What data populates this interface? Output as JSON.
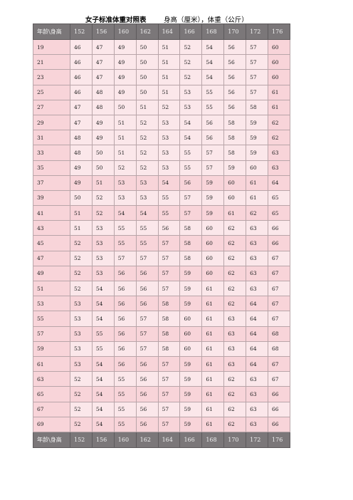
{
  "header": {
    "title": "女子标准体重对照表",
    "subtitle": "身高（厘米），体重（公斤）"
  },
  "table": {
    "corner": "年龄\\身高",
    "heights": [
      "152",
      "156",
      "160",
      "162",
      "164",
      "166",
      "168",
      "170",
      "172",
      "176"
    ],
    "rows": [
      {
        "age": "19",
        "w": [
          "46",
          "47",
          "49",
          "50",
          "51",
          "52",
          "54",
          "56",
          "57",
          "60"
        ]
      },
      {
        "age": "21",
        "w": [
          "46",
          "47",
          "49",
          "50",
          "51",
          "52",
          "54",
          "56",
          "57",
          "60"
        ]
      },
      {
        "age": "23",
        "w": [
          "46",
          "47",
          "49",
          "50",
          "51",
          "52",
          "54",
          "56",
          "57",
          "60"
        ]
      },
      {
        "age": "25",
        "w": [
          "46",
          "48",
          "49",
          "50",
          "51",
          "53",
          "55",
          "56",
          "57",
          "61"
        ]
      },
      {
        "age": "27",
        "w": [
          "47",
          "48",
          "50",
          "51",
          "52",
          "53",
          "55",
          "56",
          "58",
          "61"
        ]
      },
      {
        "age": "29",
        "w": [
          "47",
          "49",
          "51",
          "52",
          "53",
          "54",
          "56",
          "58",
          "59",
          "62"
        ]
      },
      {
        "age": "31",
        "w": [
          "48",
          "49",
          "51",
          "52",
          "53",
          "54",
          "56",
          "58",
          "59",
          "62"
        ]
      },
      {
        "age": "33",
        "w": [
          "48",
          "50",
          "51",
          "52",
          "53",
          "55",
          "57",
          "58",
          "59",
          "63"
        ]
      },
      {
        "age": "35",
        "w": [
          "49",
          "50",
          "52",
          "52",
          "53",
          "55",
          "57",
          "59",
          "60",
          "63"
        ]
      },
      {
        "age": "37",
        "w": [
          "49",
          "51",
          "53",
          "53",
          "54",
          "56",
          "59",
          "60",
          "61",
          "64"
        ]
      },
      {
        "age": "39",
        "w": [
          "50",
          "52",
          "53",
          "53",
          "55",
          "57",
          "59",
          "60",
          "61",
          "65"
        ]
      },
      {
        "age": "41",
        "w": [
          "51",
          "52",
          "54",
          "54",
          "55",
          "57",
          "59",
          "61",
          "62",
          "65"
        ]
      },
      {
        "age": "43",
        "w": [
          "51",
          "53",
          "55",
          "55",
          "56",
          "58",
          "60",
          "62",
          "63",
          "66"
        ]
      },
      {
        "age": "45",
        "w": [
          "52",
          "53",
          "55",
          "55",
          "57",
          "58",
          "60",
          "62",
          "63",
          "66"
        ]
      },
      {
        "age": "47",
        "w": [
          "52",
          "53",
          "57",
          "57",
          "57",
          "58",
          "60",
          "62",
          "63",
          "67"
        ]
      },
      {
        "age": "49",
        "w": [
          "52",
          "53",
          "56",
          "56",
          "57",
          "59",
          "60",
          "62",
          "63",
          "67"
        ]
      },
      {
        "age": "51",
        "w": [
          "52",
          "54",
          "56",
          "56",
          "57",
          "59",
          "61",
          "62",
          "63",
          "67"
        ]
      },
      {
        "age": "53",
        "w": [
          "53",
          "54",
          "56",
          "56",
          "58",
          "59",
          "61",
          "62",
          "64",
          "67"
        ]
      },
      {
        "age": "55",
        "w": [
          "53",
          "54",
          "56",
          "57",
          "58",
          "60",
          "61",
          "63",
          "64",
          "67"
        ]
      },
      {
        "age": "57",
        "w": [
          "53",
          "55",
          "56",
          "57",
          "58",
          "60",
          "61",
          "63",
          "64",
          "68"
        ]
      },
      {
        "age": "59",
        "w": [
          "53",
          "55",
          "56",
          "57",
          "58",
          "60",
          "61",
          "63",
          "64",
          "68"
        ]
      },
      {
        "age": "61",
        "w": [
          "53",
          "54",
          "56",
          "56",
          "57",
          "59",
          "61",
          "63",
          "64",
          "67"
        ]
      },
      {
        "age": "63",
        "w": [
          "52",
          "54",
          "55",
          "56",
          "57",
          "59",
          "61",
          "62",
          "63",
          "67"
        ]
      },
      {
        "age": "65",
        "w": [
          "52",
          "54",
          "55",
          "56",
          "57",
          "59",
          "61",
          "62",
          "63",
          "66"
        ]
      },
      {
        "age": "67",
        "w": [
          "52",
          "54",
          "55",
          "56",
          "57",
          "59",
          "61",
          "62",
          "63",
          "66"
        ]
      },
      {
        "age": "69",
        "w": [
          "52",
          "54",
          "55",
          "56",
          "57",
          "59",
          "61",
          "62",
          "63",
          "66"
        ]
      }
    ]
  },
  "colors": {
    "header_bg": "#7b7779",
    "row_light": "#fbe7ea",
    "row_pink": "#f8d4d9"
  }
}
